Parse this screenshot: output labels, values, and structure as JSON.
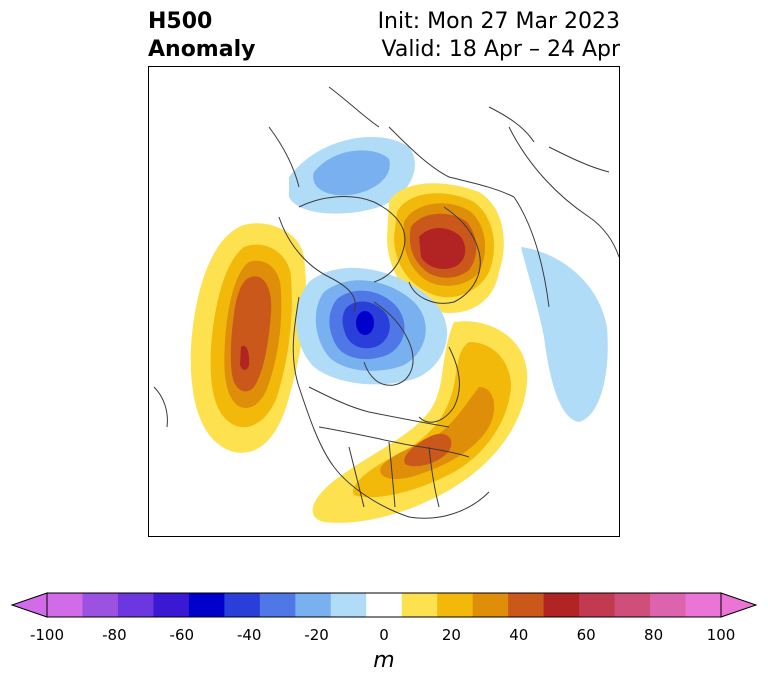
{
  "title": {
    "left_line1": "H500",
    "left_line2": "Anomaly",
    "right_line1": "Init: Mon 27 Mar 2023",
    "right_line2": "Valid: 18 Apr – 24 Apr"
  },
  "colorbar": {
    "units": "m",
    "ticks": [
      "-100",
      "-80",
      "-60",
      "-40",
      "-20",
      "0",
      "20",
      "40",
      "60",
      "80",
      "100"
    ],
    "colors": [
      "#d16be8",
      "#9c52e0",
      "#6c37de",
      "#3b19d2",
      "#0000cc",
      "#2a3ed9",
      "#4f78e6",
      "#78b0f0",
      "#b0dcf8",
      "#ffffff",
      "#fde14f",
      "#f2b90a",
      "#df8e0a",
      "#c9581a",
      "#b22424",
      "#c23a50",
      "#d04e7a",
      "#dc63ac",
      "#ea75d6"
    ],
    "extend_low_color": "#d16be8",
    "extend_high_color": "#ea75d6"
  },
  "map": {
    "region": "Northern Hemisphere (North Pacific / North America / Arctic)",
    "land_outline_color": "#3a3a3a"
  }
}
